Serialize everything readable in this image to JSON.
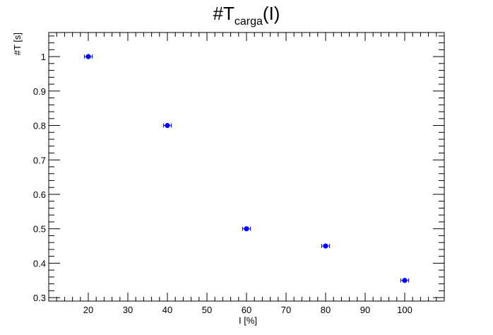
{
  "chart_data": {
    "type": "scatter",
    "title": {
      "prefix": "#T",
      "subscript": "carga",
      "suffix": "(I)"
    },
    "xlabel": "I [%]",
    "ylabel": "#T [s]",
    "xlim": [
      10,
      110
    ],
    "ylim": [
      0.29,
      1.07
    ],
    "x_ticks": [
      20,
      30,
      40,
      50,
      60,
      70,
      80,
      90,
      100
    ],
    "y_ticks": [
      0.3,
      0.4,
      0.5,
      0.6,
      0.7,
      0.8,
      0.9,
      1
    ],
    "series": [
      {
        "x": [
          20,
          40,
          60,
          80,
          100
        ],
        "y": [
          1.0,
          0.8,
          0.5,
          0.45,
          0.35
        ],
        "x_err": [
          1,
          1,
          1,
          1,
          1
        ],
        "y_err": [
          0,
          0,
          0,
          0,
          0
        ],
        "color": "#0000ff"
      }
    ],
    "grid": false,
    "legend": "none"
  }
}
